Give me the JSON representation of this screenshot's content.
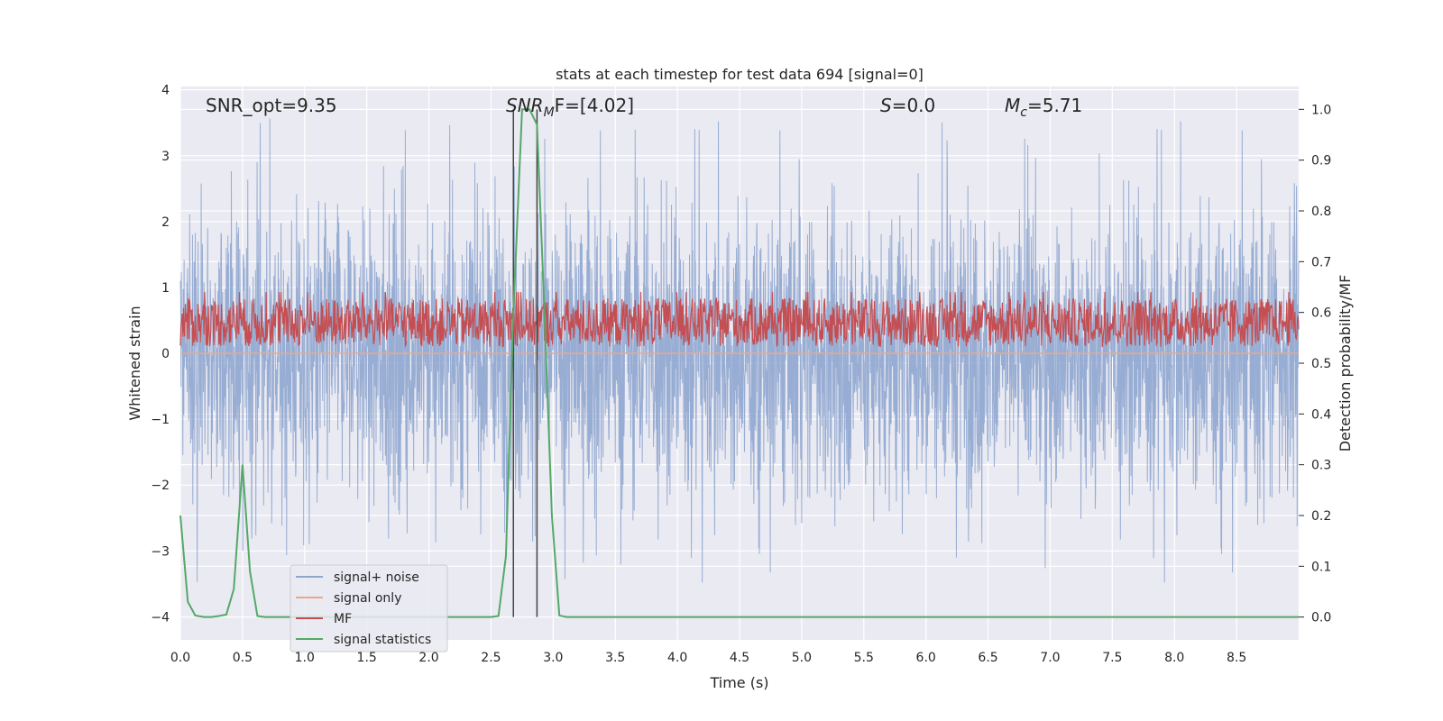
{
  "chart_data": {
    "type": "line",
    "title": "stats at each timestep for test data 694 [signal=0]",
    "xlabel": "Time (s)",
    "ylabel_left": "Whitened strain",
    "ylabel_right": "Detection probability/MF",
    "xlim": [
      0,
      9.0
    ],
    "ylim_left": [
      -4.35,
      4.05
    ],
    "ylim_right": [
      -0.045,
      1.045
    ],
    "x_ticks": [
      "0.0",
      "0.5",
      "1.0",
      "1.5",
      "2.0",
      "2.5",
      "3.0",
      "3.5",
      "4.0",
      "4.5",
      "5.0",
      "5.5",
      "6.0",
      "6.5",
      "7.0",
      "7.5",
      "8.0",
      "8.5"
    ],
    "y_ticks_left": [
      "4",
      "3",
      "2",
      "1",
      "0",
      "−1",
      "−2",
      "−3",
      "−4"
    ],
    "y_ticks_right": [
      "1.0",
      "0.9",
      "0.8",
      "0.7",
      "0.6",
      "0.5",
      "0.4",
      "0.3",
      "0.2",
      "0.1",
      "0.0"
    ],
    "grid": true,
    "legend_position": "lower-left",
    "annotations": {
      "snr_opt": "SNR_opt=9.35",
      "snr_mf_base": "SNR",
      "snr_mf_sub": "M",
      "snr_mf_rest": "F=[4.02]",
      "s_base": "S",
      "s_rest": "=0.0",
      "mc_base": "M",
      "mc_sub": "c",
      "mc_rest": "=5.71"
    },
    "vertical_lines_x": [
      2.68,
      2.87
    ],
    "series": [
      {
        "name": "signal+ noise",
        "axis": "left",
        "color": "#8fa6cf",
        "description_range": [
          -3.9,
          3.7
        ]
      },
      {
        "name": "signal only",
        "axis": "left",
        "color": "#e9a88c",
        "x": [
          0,
          9.0
        ],
        "y": [
          0,
          0
        ]
      },
      {
        "name": "MF",
        "axis": "right",
        "color": "#c44e52",
        "description_range": [
          0.52,
          0.64
        ]
      },
      {
        "name": "signal statistics",
        "axis": "right",
        "color": "#55a868",
        "x": [
          0,
          0.06,
          0.12,
          0.19,
          0.25,
          0.31,
          0.37,
          0.43,
          0.5,
          0.56,
          0.62,
          0.68,
          0.75,
          2.5,
          2.56,
          2.62,
          2.68,
          2.75,
          2.81,
          2.87,
          2.93,
          2.99,
          3.05,
          3.11,
          9.0
        ],
        "y": [
          0.2,
          0.03,
          0.003,
          0.0,
          0.0,
          0.002,
          0.005,
          0.055,
          0.3,
          0.09,
          0.002,
          0.0,
          0.0,
          0.0,
          0.002,
          0.12,
          0.6,
          1.0,
          1.0,
          0.97,
          0.6,
          0.2,
          0.003,
          0.0,
          0.0
        ]
      }
    ]
  }
}
